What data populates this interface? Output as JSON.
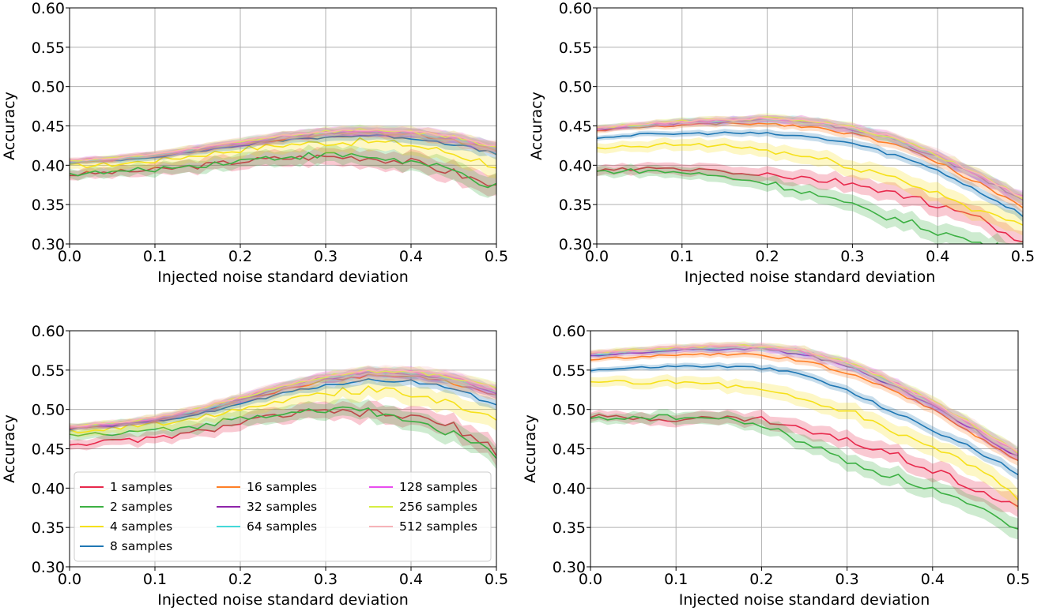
{
  "chart_data": [
    {
      "type": "line",
      "panel": "top-left",
      "title": "",
      "xlabel": "Injected noise standard deviation",
      "ylabel": "Accuracy",
      "xlim": [
        0.0,
        0.5
      ],
      "ylim": [
        0.3,
        0.6
      ],
      "xticks": [
        "0.0",
        "0.1",
        "0.2",
        "0.3",
        "0.4",
        "0.5"
      ],
      "yticks": [
        "0.30",
        "0.35",
        "0.40",
        "0.45",
        "0.50",
        "0.55",
        "0.60"
      ],
      "grid": true,
      "shaded_band": true,
      "x": [
        0.0,
        0.05,
        0.1,
        0.15,
        0.2,
        0.25,
        0.3,
        0.35,
        0.4,
        0.45,
        0.5
      ],
      "series": [
        {
          "name": "1 samples",
          "values": [
            0.388,
            0.391,
            0.394,
            0.399,
            0.405,
            0.409,
            0.411,
            0.41,
            0.404,
            0.391,
            0.372
          ]
        },
        {
          "name": "2 samples",
          "values": [
            0.389,
            0.391,
            0.395,
            0.4,
            0.406,
            0.411,
            0.413,
            0.411,
            0.404,
            0.392,
            0.371
          ]
        },
        {
          "name": "4 samples",
          "values": [
            0.399,
            0.401,
            0.406,
            0.413,
            0.42,
            0.426,
            0.429,
            0.43,
            0.426,
            0.415,
            0.4
          ]
        },
        {
          "name": "8 samples",
          "values": [
            0.404,
            0.406,
            0.411,
            0.418,
            0.425,
            0.432,
            0.436,
            0.438,
            0.435,
            0.427,
            0.414
          ]
        },
        {
          "name": "16 samples",
          "values": [
            0.404,
            0.407,
            0.412,
            0.419,
            0.427,
            0.434,
            0.439,
            0.441,
            0.439,
            0.431,
            0.418
          ]
        },
        {
          "name": "32 samples",
          "values": [
            0.405,
            0.408,
            0.413,
            0.42,
            0.428,
            0.436,
            0.441,
            0.443,
            0.441,
            0.434,
            0.421
          ]
        },
        {
          "name": "64 samples",
          "values": [
            0.405,
            0.408,
            0.413,
            0.421,
            0.429,
            0.437,
            0.442,
            0.444,
            0.442,
            0.435,
            0.422
          ]
        },
        {
          "name": "128 samples",
          "values": [
            0.406,
            0.409,
            0.414,
            0.421,
            0.429,
            0.437,
            0.442,
            0.444,
            0.443,
            0.436,
            0.423
          ]
        },
        {
          "name": "256 samples",
          "values": [
            0.406,
            0.409,
            0.414,
            0.422,
            0.43,
            0.438,
            0.443,
            0.445,
            0.443,
            0.436,
            0.423
          ]
        },
        {
          "name": "512 samples",
          "values": [
            0.406,
            0.409,
            0.414,
            0.422,
            0.43,
            0.438,
            0.443,
            0.445,
            0.443,
            0.436,
            0.424
          ]
        }
      ]
    },
    {
      "type": "line",
      "panel": "top-right",
      "title": "",
      "xlabel": "Injected noise standard deviation",
      "ylabel": "Accuracy",
      "xlim": [
        0.0,
        0.5
      ],
      "ylim": [
        0.3,
        0.6
      ],
      "xticks": [
        "0.0",
        "0.1",
        "0.2",
        "0.3",
        "0.4",
        "0.5"
      ],
      "yticks": [
        "0.30",
        "0.35",
        "0.40",
        "0.45",
        "0.50",
        "0.55",
        "0.60"
      ],
      "grid": true,
      "shaded_band": true,
      "x": [
        0.0,
        0.05,
        0.1,
        0.15,
        0.2,
        0.25,
        0.3,
        0.35,
        0.4,
        0.45,
        0.5
      ],
      "series": [
        {
          "name": "1 samples",
          "values": [
            0.393,
            0.395,
            0.395,
            0.392,
            0.388,
            0.382,
            0.376,
            0.365,
            0.348,
            0.33,
            0.304
          ]
        },
        {
          "name": "2 samples",
          "values": [
            0.392,
            0.393,
            0.391,
            0.385,
            0.378,
            0.365,
            0.348,
            0.332,
            0.316,
            0.3,
            0.29
          ]
        },
        {
          "name": "4 samples",
          "values": [
            0.42,
            0.424,
            0.426,
            0.425,
            0.419,
            0.41,
            0.398,
            0.384,
            0.364,
            0.343,
            0.32
          ]
        },
        {
          "name": "8 samples",
          "values": [
            0.435,
            0.439,
            0.44,
            0.441,
            0.44,
            0.436,
            0.428,
            0.413,
            0.394,
            0.366,
            0.337
          ]
        },
        {
          "name": "16 samples",
          "values": [
            0.444,
            0.448,
            0.451,
            0.453,
            0.453,
            0.449,
            0.44,
            0.426,
            0.404,
            0.376,
            0.347
          ]
        },
        {
          "name": "32 samples",
          "values": [
            0.446,
            0.45,
            0.454,
            0.456,
            0.458,
            0.455,
            0.446,
            0.432,
            0.41,
            0.384,
            0.356
          ]
        },
        {
          "name": "64 samples",
          "values": [
            0.447,
            0.451,
            0.455,
            0.457,
            0.459,
            0.456,
            0.447,
            0.433,
            0.412,
            0.386,
            0.358
          ]
        },
        {
          "name": "128 samples",
          "values": [
            0.447,
            0.451,
            0.455,
            0.457,
            0.459,
            0.457,
            0.448,
            0.434,
            0.413,
            0.387,
            0.359
          ]
        },
        {
          "name": "256 samples",
          "values": [
            0.448,
            0.452,
            0.456,
            0.458,
            0.46,
            0.457,
            0.448,
            0.434,
            0.413,
            0.387,
            0.359
          ]
        },
        {
          "name": "512 samples",
          "values": [
            0.448,
            0.452,
            0.456,
            0.458,
            0.46,
            0.458,
            0.449,
            0.435,
            0.414,
            0.388,
            0.36
          ]
        }
      ]
    },
    {
      "type": "line",
      "panel": "bottom-left",
      "title": "",
      "xlabel": "Injected noise standard deviation",
      "ylabel": "Accuracy",
      "xlim": [
        0.0,
        0.5
      ],
      "ylim": [
        0.3,
        0.6
      ],
      "xticks": [
        "0.0",
        "0.1",
        "0.2",
        "0.3",
        "0.4",
        "0.5"
      ],
      "yticks": [
        "0.30",
        "0.35",
        "0.40",
        "0.45",
        "0.50",
        "0.55",
        "0.60"
      ],
      "grid": true,
      "shaded_band": true,
      "legend": {
        "placement": "lower-left",
        "columns": [
          [
            "1 samples",
            "2 samples",
            "4 samples",
            "8 samples"
          ],
          [
            "16 samples",
            "32 samples",
            "64 samples"
          ],
          [
            "128 samples",
            "256 samples",
            "512 samples"
          ]
        ]
      },
      "x": [
        0.0,
        0.05,
        0.1,
        0.15,
        0.2,
        0.25,
        0.3,
        0.35,
        0.4,
        0.45,
        0.5
      ],
      "series": [
        {
          "name": "1 samples",
          "values": [
            0.456,
            0.459,
            0.463,
            0.471,
            0.483,
            0.493,
            0.497,
            0.495,
            0.491,
            0.478,
            0.447
          ]
        },
        {
          "name": "2 samples",
          "values": [
            0.468,
            0.468,
            0.473,
            0.479,
            0.489,
            0.497,
            0.5,
            0.497,
            0.486,
            0.47,
            0.441
          ]
        },
        {
          "name": "4 samples",
          "values": [
            0.472,
            0.476,
            0.482,
            0.49,
            0.502,
            0.513,
            0.521,
            0.525,
            0.52,
            0.509,
            0.487
          ]
        },
        {
          "name": "8 samples",
          "values": [
            0.475,
            0.479,
            0.485,
            0.494,
            0.507,
            0.52,
            0.531,
            0.537,
            0.536,
            0.527,
            0.505
          ]
        },
        {
          "name": "16 samples",
          "values": [
            0.476,
            0.48,
            0.487,
            0.497,
            0.511,
            0.525,
            0.537,
            0.543,
            0.542,
            0.534,
            0.517
          ]
        },
        {
          "name": "32 samples",
          "values": [
            0.477,
            0.481,
            0.488,
            0.498,
            0.513,
            0.528,
            0.54,
            0.546,
            0.545,
            0.538,
            0.522
          ]
        },
        {
          "name": "64 samples",
          "values": [
            0.478,
            0.482,
            0.489,
            0.499,
            0.514,
            0.529,
            0.541,
            0.547,
            0.547,
            0.54,
            0.524
          ]
        },
        {
          "name": "128 samples",
          "values": [
            0.478,
            0.482,
            0.489,
            0.5,
            0.515,
            0.53,
            0.542,
            0.548,
            0.548,
            0.541,
            0.525
          ]
        },
        {
          "name": "256 samples",
          "values": [
            0.479,
            0.483,
            0.49,
            0.5,
            0.515,
            0.53,
            0.542,
            0.548,
            0.548,
            0.541,
            0.526
          ]
        },
        {
          "name": "512 samples",
          "values": [
            0.479,
            0.483,
            0.49,
            0.501,
            0.516,
            0.531,
            0.543,
            0.549,
            0.549,
            0.542,
            0.526
          ]
        }
      ]
    },
    {
      "type": "line",
      "panel": "bottom-right",
      "title": "",
      "xlabel": "Injected noise standard deviation",
      "ylabel": "Accuracy",
      "xlim": [
        0.0,
        0.5
      ],
      "ylim": [
        0.3,
        0.6
      ],
      "xticks": [
        "0.0",
        "0.1",
        "0.2",
        "0.3",
        "0.4",
        "0.5"
      ],
      "yticks": [
        "0.30",
        "0.35",
        "0.40",
        "0.45",
        "0.50",
        "0.55",
        "0.60"
      ],
      "grid": true,
      "shaded_band": true,
      "x": [
        0.0,
        0.05,
        0.1,
        0.15,
        0.2,
        0.25,
        0.3,
        0.35,
        0.4,
        0.45,
        0.5
      ],
      "series": [
        {
          "name": "1 samples",
          "values": [
            0.491,
            0.489,
            0.488,
            0.489,
            0.488,
            0.474,
            0.46,
            0.446,
            0.424,
            0.401,
            0.375
          ]
        },
        {
          "name": "2 samples",
          "values": [
            0.488,
            0.49,
            0.49,
            0.488,
            0.48,
            0.458,
            0.434,
            0.416,
            0.398,
            0.374,
            0.344
          ]
        },
        {
          "name": "4 samples",
          "values": [
            0.533,
            0.535,
            0.535,
            0.533,
            0.524,
            0.513,
            0.498,
            0.475,
            0.453,
            0.427,
            0.39
          ]
        },
        {
          "name": "8 samples",
          "values": [
            0.55,
            0.553,
            0.555,
            0.555,
            0.553,
            0.544,
            0.524,
            0.499,
            0.474,
            0.449,
            0.418
          ]
        },
        {
          "name": "16 samples",
          "values": [
            0.563,
            0.567,
            0.569,
            0.57,
            0.569,
            0.562,
            0.547,
            0.527,
            0.499,
            0.468,
            0.435
          ]
        },
        {
          "name": "32 samples",
          "values": [
            0.568,
            0.572,
            0.575,
            0.577,
            0.577,
            0.57,
            0.555,
            0.533,
            0.505,
            0.474,
            0.44
          ]
        },
        {
          "name": "64 samples",
          "values": [
            0.57,
            0.574,
            0.577,
            0.579,
            0.579,
            0.573,
            0.558,
            0.536,
            0.508,
            0.477,
            0.443
          ]
        },
        {
          "name": "128 samples",
          "values": [
            0.571,
            0.575,
            0.578,
            0.58,
            0.58,
            0.574,
            0.559,
            0.537,
            0.509,
            0.478,
            0.444
          ]
        },
        {
          "name": "256 samples",
          "values": [
            0.572,
            0.576,
            0.579,
            0.581,
            0.581,
            0.575,
            0.56,
            0.538,
            0.51,
            0.479,
            0.445
          ]
        },
        {
          "name": "512 samples",
          "values": [
            0.572,
            0.576,
            0.579,
            0.581,
            0.581,
            0.575,
            0.56,
            0.538,
            0.51,
            0.479,
            0.446
          ]
        }
      ]
    }
  ],
  "series_colors": {
    "1 samples": "#e8294c",
    "2 samples": "#3cb043",
    "4 samples": "#f6e11a",
    "8 samples": "#1f77b4",
    "16 samples": "#ff7f27",
    "32 samples": "#8e24aa",
    "64 samples": "#44d9d9",
    "128 samples": "#e94ef0",
    "256 samples": "#d6ee42",
    "512 samples": "#f7b3b8"
  }
}
